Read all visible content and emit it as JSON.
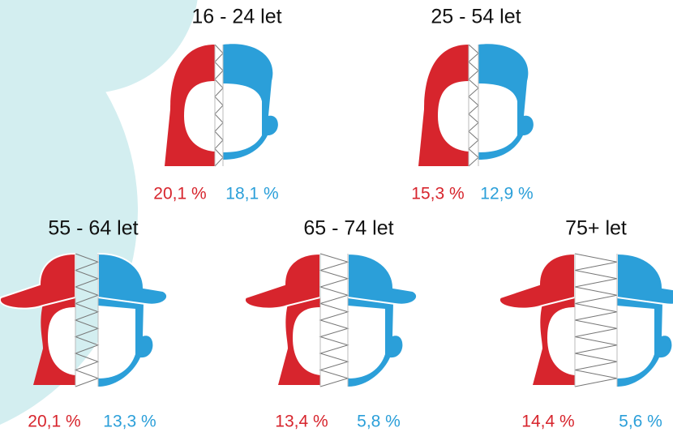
{
  "groups": [
    {
      "title": "16 - 24 let",
      "female": "20,1 %",
      "male": "18,1 %"
    },
    {
      "title": "25 - 54 let",
      "female": "15,3 %",
      "male": "12,9 %"
    },
    {
      "title": "55 - 64 let",
      "female": "20,1 %",
      "male": "13,3 %"
    },
    {
      "title": "65 - 74 let",
      "female": "13,4 %",
      "male": "5,8 %"
    },
    {
      "title": "75+ let",
      "female": "14,4 %",
      "male": "5,6 %"
    }
  ]
}
